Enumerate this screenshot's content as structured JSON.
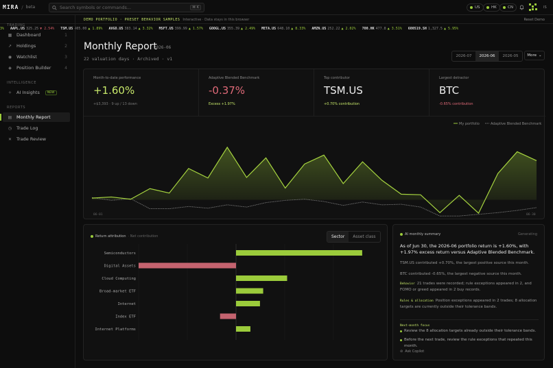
{
  "app": {
    "logo": "MIRA",
    "slash": "/",
    "tag": "beta"
  },
  "search": {
    "placeholder": "Search symbols or commands...",
    "shortcut": "⌘ K"
  },
  "regions": [
    "US",
    "HK",
    "CN"
  ],
  "user": {
    "initials": "IS"
  },
  "banner": {
    "demo": "DEMO PORTFOLIO · PRESET BEHAVIOR SAMPLES",
    "note": "Interactive · Data stays in this browser",
    "reset": "Reset Demo"
  },
  "quotes": [
    {
      "sym": "",
      "price": "",
      "chg": "3%",
      "dir": "up"
    },
    {
      "sym": "AAPL.US",
      "price": "325.25",
      "chg": "▼ 2.54%",
      "dir": "dn"
    },
    {
      "sym": "TSM.US",
      "price": "405.00",
      "chg": "▲ 1.89%",
      "dir": "up"
    },
    {
      "sym": "AVGO.US",
      "price": "383.14",
      "chg": "▲ 3.32%",
      "dir": "up"
    },
    {
      "sym": "MSFT.US",
      "price": "399.99",
      "chg": "▲ 1.57%",
      "dir": "up"
    },
    {
      "sym": "GOOGL.US",
      "price": "355.39",
      "chg": "▲ 2.49%",
      "dir": "up"
    },
    {
      "sym": "META.US",
      "price": "648.10",
      "chg": "▲ 8.33%",
      "dir": "up"
    },
    {
      "sym": "AMZN.US",
      "price": "252.22",
      "chg": "▲ 2.02%",
      "dir": "up"
    },
    {
      "sym": "700.HK",
      "price": "477.8",
      "chg": "▲ 3.51%",
      "dir": "up"
    },
    {
      "sym": "600519.SH",
      "price": "1,327.5",
      "chg": "▲ 5.95%",
      "dir": "up"
    }
  ],
  "sidebar": {
    "sections": [
      "TRADING",
      "INTELLIGENCE",
      "REPORTS"
    ],
    "trading": [
      {
        "label": "Dashboard",
        "icon": "grid-icon",
        "glyph": "▦",
        "key": "1"
      },
      {
        "label": "Holdings",
        "icon": "chart-line-icon",
        "glyph": "↗",
        "key": "2"
      },
      {
        "label": "Watchlist",
        "icon": "eye-icon",
        "glyph": "◉",
        "key": "3"
      },
      {
        "label": "Position Builder",
        "icon": "layers-icon",
        "glyph": "◈",
        "key": "4"
      }
    ],
    "intelligence": [
      {
        "label": "AI Insights",
        "icon": "sparkle-icon",
        "glyph": "✧",
        "badge": "NEW"
      }
    ],
    "reports": [
      {
        "label": "Monthly Report",
        "icon": "doc-icon",
        "glyph": "▤"
      },
      {
        "label": "Trade Log",
        "icon": "clock-icon",
        "glyph": "◷"
      },
      {
        "label": "Trade Review",
        "icon": "cross-icon",
        "glyph": "✕"
      }
    ]
  },
  "page": {
    "title": "Monthly Report",
    "period": "2026-06",
    "subtitle": "22 valuation days · Archived · v1",
    "tabs": [
      "2026-07",
      "2026-06",
      "2026-05"
    ],
    "active_tab": 1,
    "more": "More"
  },
  "kpis": [
    {
      "label": "Month-to-date performance",
      "value": "+1.60%",
      "sub": "+$3,393 · 9 up / 13 down",
      "color": "#c7e86a",
      "subcolor": "#777"
    },
    {
      "label": "Adaptive Blended Benchmark",
      "value": "-0.37%",
      "sub": "Excess +1.97%",
      "color": "#e06a78",
      "subcolor": "#c7e86a"
    },
    {
      "label": "Top contributor",
      "value": "TSM.US",
      "sub": "+0.70% contribution",
      "color": "#eeeeee",
      "subcolor": "#c7e86a"
    },
    {
      "label": "Largest detractor",
      "value": "BTC",
      "sub": "-0.65% contribution",
      "color": "#eeeeee",
      "subcolor": "#e06a78"
    }
  ],
  "chart_data": [
    {
      "type": "area",
      "series": [
        {
          "name": "My portfolio",
          "values": [
            0.3,
            0.5,
            0.1,
            2.0,
            1.2,
            5.6,
            3.9,
            9.4,
            4.0,
            7.5,
            2.1,
            6.4,
            8.0,
            2.9,
            6.8,
            3.5,
            1.0,
            0.9,
            -2.3,
            0.8,
            -2.4,
            4.7,
            8.6,
            7.0
          ]
        },
        {
          "name": "Adaptive Blended Benchmark",
          "values": [
            0.4,
            -0.1,
            0.2,
            -1.6,
            -1.6,
            -1.2,
            -1.5,
            -0.9,
            -1.3,
            -0.5,
            -0.1,
            0.1,
            -0.3,
            -1.0,
            -0.4,
            -0.9,
            -0.8,
            -1.3,
            -2.9,
            -2.9,
            -2.6,
            -2.3,
            -1.9,
            -1.4
          ]
        }
      ],
      "x_labels": [
        "06-01",
        "06-30"
      ],
      "legend": "top-right"
    },
    {
      "type": "bar",
      "title": "Return attribution",
      "subtitle": "Net contribution",
      "orientation": "horizontal",
      "categories": [
        "Semiconductors",
        "Digital Assets",
        "Cloud Computing",
        "Broad-market ETF",
        "Internet",
        "Index ETF",
        "Internet Platforms"
      ],
      "values": [
        0.79,
        -0.61,
        0.32,
        0.17,
        0.15,
        -0.1,
        0.09
      ],
      "xlim": [
        -0.61,
        0.85
      ]
    }
  ],
  "attribution": {
    "toggle": [
      "Sector",
      "Asset class"
    ],
    "active": 0
  },
  "summary": {
    "title": "AI monthly summary",
    "generating": "Generating",
    "headline": "As of Jun 30, the 2026-06 portfolio return is +1.60%, with +1.97% excess return versus Adaptive Blended Benchmark.",
    "p1": "TSM.US contributed +0.70%, the largest positive source this month.",
    "p2": "BTC contributed -0.65%, the largest negative source this month.",
    "behavior_tag": "Behavior",
    "behavior": "21 trades were recorded; rule exceptions appeared in 2, and FOMO or greed appeared in 2 buy records.",
    "rules_tag": "Rules & allocation",
    "rules": "Position exceptions appeared in 2 trades; 8 allocation targets are currently outside their tolerance bands.",
    "focus_tag": "Next-month focus",
    "focus": [
      "Review the 8 allocation targets already outside their tolerance bands.",
      "Before the next trade, review the rule exceptions that repeated this month."
    ],
    "copilot": "Ask Copilot"
  },
  "colors": {
    "accent": "#9bcb3b",
    "negative": "#c4636f",
    "bench": "#777777"
  }
}
